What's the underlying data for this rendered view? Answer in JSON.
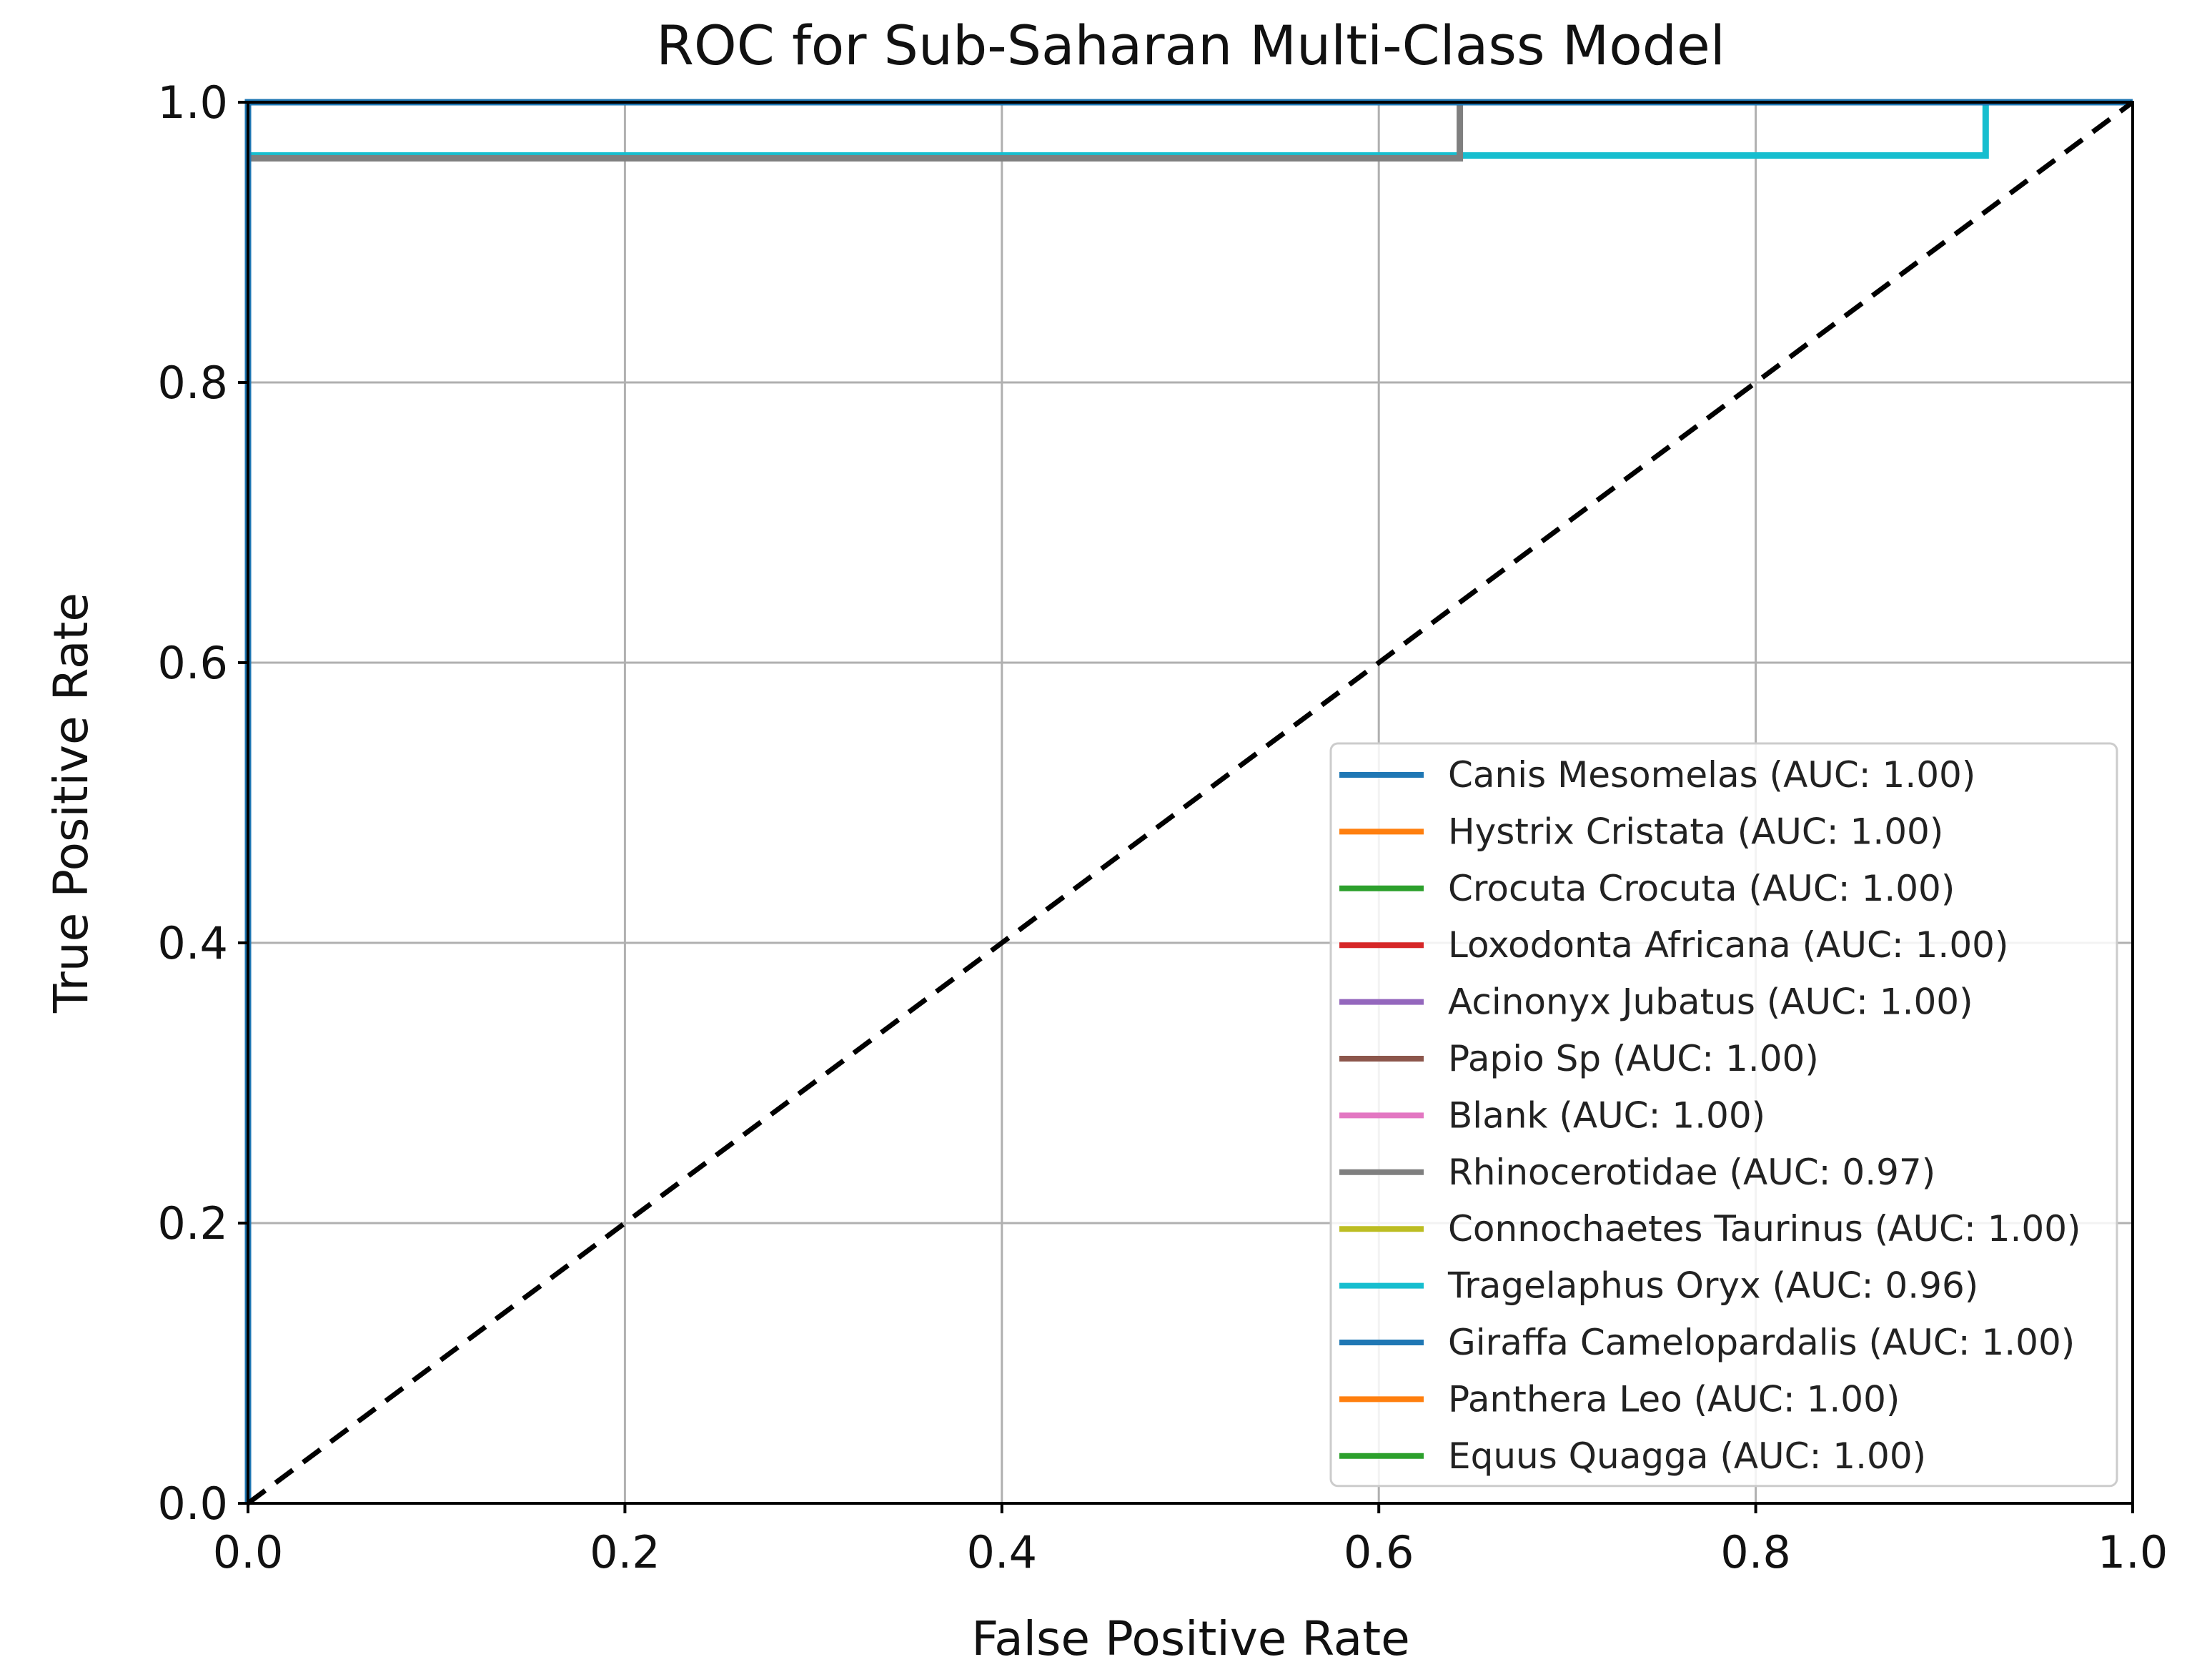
{
  "chart_data": {
    "type": "line",
    "title": "ROC for Sub-Saharan Multi-Class Model",
    "xlabel": "False Positive Rate",
    "ylabel": "True Positive Rate",
    "xlim": [
      0.0,
      1.0
    ],
    "ylim": [
      0.0,
      1.0
    ],
    "xticks": [
      0.0,
      0.2,
      0.4,
      0.6,
      0.8,
      1.0
    ],
    "yticks": [
      0.0,
      0.2,
      0.4,
      0.6,
      0.8,
      1.0
    ],
    "xtick_labels": [
      "0.0",
      "0.2",
      "0.4",
      "0.6",
      "0.8",
      "1.0"
    ],
    "ytick_labels": [
      "0.0",
      "0.2",
      "0.4",
      "0.6",
      "0.8",
      "1.0"
    ],
    "grid": true,
    "legend_position": "lower-right",
    "series": [
      {
        "name": "Canis Mesomelas",
        "label": "Canis Mesomelas (AUC: 1.00)",
        "auc": 1.0,
        "color": "#1f77b4",
        "x": [
          0,
          0,
          1
        ],
        "y": [
          0,
          1,
          1
        ]
      },
      {
        "name": "Hystrix Cristata",
        "label": "Hystrix Cristata (AUC: 1.00)",
        "auc": 1.0,
        "color": "#ff7f0e",
        "x": [
          0,
          0,
          1
        ],
        "y": [
          0,
          1,
          1
        ]
      },
      {
        "name": "Crocuta Crocuta",
        "label": "Crocuta Crocuta (AUC: 1.00)",
        "auc": 1.0,
        "color": "#2ca02c",
        "x": [
          0,
          0,
          1
        ],
        "y": [
          0,
          1,
          1
        ]
      },
      {
        "name": "Loxodonta Africana",
        "label": "Loxodonta Africana (AUC: 1.00)",
        "auc": 1.0,
        "color": "#d62728",
        "x": [
          0,
          0,
          1
        ],
        "y": [
          0,
          1,
          1
        ]
      },
      {
        "name": "Acinonyx Jubatus",
        "label": "Acinonyx Jubatus (AUC: 1.00)",
        "auc": 1.0,
        "color": "#9467bd",
        "x": [
          0,
          0,
          1
        ],
        "y": [
          0,
          1,
          1
        ]
      },
      {
        "name": "Papio Sp",
        "label": "Papio Sp (AUC: 1.00)",
        "auc": 1.0,
        "color": "#8c564b",
        "x": [
          0,
          0,
          1
        ],
        "y": [
          0,
          1,
          1
        ]
      },
      {
        "name": "Blank",
        "label": "Blank (AUC: 1.00)",
        "auc": 1.0,
        "color": "#e377c2",
        "x": [
          0,
          0,
          0.005,
          1
        ],
        "y": [
          0,
          1,
          1,
          1
        ]
      },
      {
        "name": "Rhinocerotidae",
        "label": "Rhinocerotidae (AUC: 0.97)",
        "auc": 0.97,
        "color": "#7f7f7f",
        "x": [
          0,
          0,
          0.643,
          0.643,
          1
        ],
        "y": [
          0,
          0.96,
          0.96,
          1,
          1
        ]
      },
      {
        "name": "Connochaetes Taurinus",
        "label": "Connochaetes Taurinus (AUC: 1.00)",
        "auc": 1.0,
        "color": "#bcbd22",
        "x": [
          0,
          0,
          1
        ],
        "y": [
          0,
          1,
          1
        ]
      },
      {
        "name": "Tragelaphus Oryx",
        "label": "Tragelaphus Oryx (AUC: 0.96)",
        "auc": 0.96,
        "color": "#17becf",
        "x": [
          0,
          0,
          0.922,
          0.922,
          1
        ],
        "y": [
          0,
          0.962,
          0.962,
          1,
          1
        ]
      },
      {
        "name": "Giraffa Camelopardalis",
        "label": "Giraffa Camelopardalis (AUC: 1.00)",
        "auc": 1.0,
        "color": "#1f77b4",
        "x": [
          0,
          0,
          1
        ],
        "y": [
          0,
          1,
          1
        ]
      },
      {
        "name": "Panthera Leo",
        "label": "Panthera Leo (AUC: 1.00)",
        "auc": 1.0,
        "color": "#ff7f0e",
        "x": [
          0,
          0,
          1
        ],
        "y": [
          0,
          1,
          1
        ]
      },
      {
        "name": "Equus Quagga",
        "label": "Equus Quagga (AUC: 1.00)",
        "auc": 1.0,
        "color": "#2ca02c",
        "x": [
          0,
          0,
          1
        ],
        "y": [
          0,
          1,
          1
        ]
      }
    ],
    "reference_line": {
      "name": "chance",
      "x": [
        0,
        1
      ],
      "y": [
        0,
        1
      ],
      "color": "#000000",
      "style": "dashed"
    }
  }
}
